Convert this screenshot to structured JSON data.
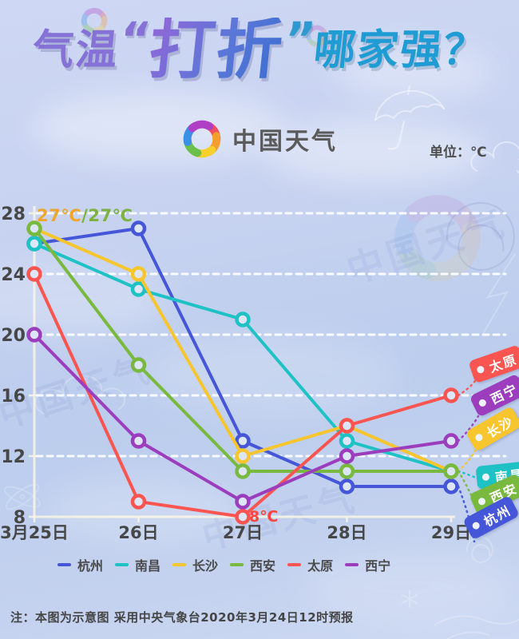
{
  "title": {
    "part1": "气温",
    "quote_open": "“",
    "part2": "打折",
    "quote_close": "”",
    "part3": "哪家强？"
  },
  "brand": {
    "logo_text": "中国天气",
    "unit_label": "单位：℃",
    "watermark": "中国天气"
  },
  "chart_data": {
    "type": "line",
    "title": "气温“打折”哪家强？",
    "unit": "℃",
    "categories": [
      "3月25日",
      "26日",
      "27日",
      "28日",
      "29日"
    ],
    "series": [
      {
        "name": "杭州",
        "color": "#4656d8",
        "values": [
          26,
          27,
          13,
          10,
          10
        ]
      },
      {
        "name": "南昌",
        "color": "#1fc2c4",
        "values": [
          26,
          23,
          21,
          13,
          11
        ]
      },
      {
        "name": "长沙",
        "color": "#f7c52e",
        "values": [
          27,
          24,
          12,
          14,
          11
        ]
      },
      {
        "name": "西安",
        "color": "#79b93f",
        "values": [
          27,
          18,
          11,
          11,
          11
        ]
      },
      {
        "name": "太原",
        "color": "#fa5550",
        "values": [
          24,
          9,
          8,
          14,
          16
        ]
      },
      {
        "name": "西宁",
        "color": "#9c3dbe",
        "values": [
          20,
          13,
          9,
          12,
          13
        ]
      }
    ],
    "ylim": [
      8,
      28
    ],
    "yticks": [
      8,
      12,
      16,
      20,
      24,
      28
    ],
    "grid": "horizontal-dashed-white",
    "legend_position": "bottom",
    "annotations": {
      "start_label_yellow": "27℃",
      "start_label_green": "/27℃",
      "min_label": "8℃"
    }
  },
  "tags": [
    {
      "label": "太原"
    },
    {
      "label": "西宁"
    },
    {
      "label": "长沙"
    },
    {
      "label": "南昌"
    },
    {
      "label": "西安"
    },
    {
      "label": "杭州"
    }
  ],
  "note": "注：本图为示意图 采用中央气象台2020年3月24日12时预报"
}
